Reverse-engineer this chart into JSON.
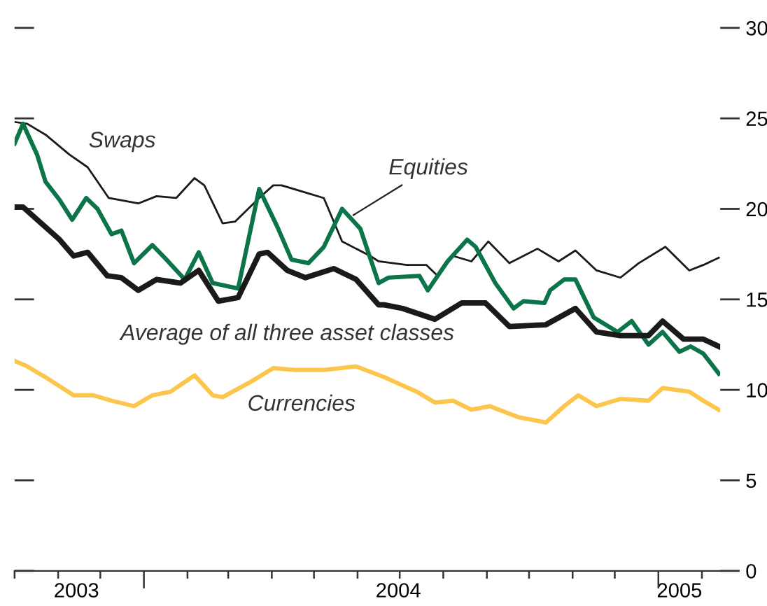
{
  "chart_data": {
    "type": "line",
    "xlim": [
      "2003-10-01",
      "2005-02-14"
    ],
    "xticks": [
      {
        "value": "2003-10-01",
        "label": null
      },
      {
        "value": "2003-11-01",
        "label": null
      },
      {
        "value": "2003-12-01",
        "label": null
      },
      {
        "value": "2004-01-01",
        "label": null
      },
      {
        "value": "2004-02-01",
        "label": null
      },
      {
        "value": "2004-03-01",
        "label": null
      },
      {
        "value": "2004-04-01",
        "label": null
      },
      {
        "value": "2004-05-01",
        "label": null
      },
      {
        "value": "2004-06-01",
        "label": null
      },
      {
        "value": "2004-07-01",
        "label": null
      },
      {
        "value": "2004-08-01",
        "label": null
      },
      {
        "value": "2004-09-01",
        "label": null
      },
      {
        "value": "2004-10-01",
        "label": null
      },
      {
        "value": "2004-11-01",
        "label": null
      },
      {
        "value": "2004-12-01",
        "label": null
      },
      {
        "value": "2005-01-01",
        "label": null
      },
      {
        "value": "2005-02-01",
        "label": null
      },
      {
        "value": "2003-11-14",
        "label": "2003"
      },
      {
        "value": "2004-06-30",
        "label": "2004"
      },
      {
        "value": "2005-01-16",
        "label": "2005"
      }
    ],
    "ylim": [
      0,
      30
    ],
    "yticks": [
      0,
      5,
      10,
      15,
      20,
      25,
      30
    ],
    "grid": false,
    "legend": false,
    "line_style": "solid",
    "marker": "none",
    "series": [
      {
        "name": "Swaps",
        "color": "#1a1a1a",
        "x": [
          "2003-10-01",
          "2003-10-10",
          "2003-10-23",
          "2003-11-09",
          "2003-11-22",
          "2003-12-07",
          "2003-12-28",
          "2004-01-10",
          "2004-01-24",
          "2004-02-06",
          "2004-02-13",
          "2004-02-26",
          "2004-03-06",
          "2004-03-23",
          "2004-04-02",
          "2004-04-08",
          "2004-04-25",
          "2004-05-08",
          "2004-05-21",
          "2004-06-10",
          "2004-06-16",
          "2004-07-06",
          "2004-07-20",
          "2004-07-28",
          "2004-08-08",
          "2004-08-21",
          "2004-09-02",
          "2004-09-17",
          "2004-10-07",
          "2004-10-22",
          "2004-11-03",
          "2004-11-18",
          "2004-12-05",
          "2004-12-18",
          "2005-01-06",
          "2005-01-23",
          "2005-02-02",
          "2005-02-13"
        ],
        "values": [
          24.8,
          24.7,
          24.1,
          23.0,
          22.3,
          20.6,
          20.3,
          20.7,
          20.6,
          21.7,
          21.3,
          19.2,
          19.3,
          20.6,
          21.3,
          21.3,
          20.9,
          20.6,
          18.2,
          17.4,
          17.1,
          16.9,
          16.9,
          16.3,
          17.4,
          17.1,
          18.2,
          17.0,
          17.8,
          17.1,
          17.7,
          16.6,
          16.2,
          17.0,
          17.9,
          16.6,
          16.9,
          17.3
        ]
      },
      {
        "name": "Equities",
        "color": "#0b7449",
        "x": [
          "2003-10-01",
          "2003-10-07",
          "2003-10-17",
          "2003-10-23",
          "2003-11-02",
          "2003-11-11",
          "2003-11-21",
          "2003-11-29",
          "2003-12-09",
          "2003-12-16",
          "2003-12-25",
          "2004-01-07",
          "2004-01-17",
          "2004-01-30",
          "2004-02-09",
          "2004-02-19",
          "2004-03-08",
          "2004-03-23",
          "2004-04-05",
          "2004-04-15",
          "2004-04-27",
          "2004-05-08",
          "2004-05-21",
          "2004-06-03",
          "2004-06-16",
          "2004-06-23",
          "2004-07-15",
          "2004-07-21",
          "2004-08-04",
          "2004-08-18",
          "2004-08-24",
          "2004-09-07",
          "2004-09-20",
          "2004-09-27",
          "2004-10-12",
          "2004-10-16",
          "2004-10-26",
          "2004-11-03",
          "2004-11-16",
          "2004-12-03",
          "2004-12-13",
          "2004-12-25",
          "2005-01-04",
          "2005-01-16",
          "2005-01-24",
          "2005-02-02",
          "2005-02-13"
        ],
        "values": [
          23.6,
          24.7,
          23.0,
          21.5,
          20.5,
          19.4,
          20.6,
          20.0,
          18.6,
          18.8,
          17.0,
          18.0,
          17.2,
          16.1,
          17.6,
          15.9,
          15.6,
          21.1,
          19.0,
          17.2,
          17.0,
          17.9,
          20.0,
          18.9,
          15.9,
          16.2,
          16.3,
          15.5,
          17.1,
          18.3,
          17.9,
          15.9,
          14.5,
          14.9,
          14.8,
          15.5,
          16.1,
          16.1,
          14.0,
          13.2,
          13.8,
          12.5,
          13.2,
          12.1,
          12.4,
          12.0,
          10.9
        ]
      },
      {
        "name": "Average of all three asset classes",
        "color": "#1a1a1a",
        "x": [
          "2003-10-01",
          "2003-10-07",
          "2003-10-20",
          "2003-11-02",
          "2003-11-12",
          "2003-11-22",
          "2003-12-06",
          "2003-12-16",
          "2003-12-28",
          "2004-01-10",
          "2004-01-27",
          "2004-02-09",
          "2004-02-23",
          "2004-03-08",
          "2004-03-23",
          "2004-03-29",
          "2004-04-12",
          "2004-04-25",
          "2004-05-15",
          "2004-05-31",
          "2004-06-16",
          "2004-06-20",
          "2004-07-03",
          "2004-07-26",
          "2004-08-14",
          "2004-08-31",
          "2004-09-17",
          "2004-10-13",
          "2004-11-03",
          "2004-11-18",
          "2004-12-05",
          "2004-12-25",
          "2005-01-04",
          "2005-01-19",
          "2005-02-02",
          "2005-02-13"
        ],
        "values": [
          20.1,
          20.1,
          19.2,
          18.3,
          17.4,
          17.6,
          16.3,
          16.2,
          15.5,
          16.1,
          15.9,
          16.6,
          14.9,
          15.1,
          17.5,
          17.6,
          16.6,
          16.2,
          16.7,
          16.1,
          14.7,
          14.7,
          14.5,
          13.9,
          14.8,
          14.8,
          13.5,
          13.6,
          14.5,
          13.2,
          13.0,
          13.0,
          13.8,
          12.8,
          12.8,
          12.4
        ]
      },
      {
        "name": "Currencies",
        "color": "#fcc64c",
        "x": [
          "2003-10-01",
          "2003-10-10",
          "2003-10-23",
          "2003-11-12",
          "2003-11-26",
          "2003-12-09",
          "2003-12-25",
          "2004-01-07",
          "2004-01-20",
          "2004-02-06",
          "2004-02-19",
          "2004-02-26",
          "2004-03-16",
          "2004-04-02",
          "2004-04-18",
          "2004-05-08",
          "2004-05-31",
          "2004-06-20",
          "2004-07-13",
          "2004-07-26",
          "2004-08-08",
          "2004-08-21",
          "2004-09-03",
          "2004-09-23",
          "2004-10-13",
          "2004-10-26",
          "2004-11-05",
          "2004-11-18",
          "2004-12-05",
          "2004-12-25",
          "2005-01-04",
          "2005-01-23",
          "2005-02-02",
          "2005-02-13"
        ],
        "values": [
          11.6,
          11.3,
          10.7,
          9.7,
          9.7,
          9.4,
          9.1,
          9.7,
          9.9,
          10.8,
          9.7,
          9.6,
          10.4,
          11.2,
          11.1,
          11.1,
          11.3,
          10.7,
          9.9,
          9.3,
          9.4,
          8.9,
          9.1,
          8.5,
          8.2,
          9.1,
          9.7,
          9.1,
          9.5,
          9.4,
          10.1,
          9.9,
          9.4,
          8.9
        ]
      }
    ]
  }
}
